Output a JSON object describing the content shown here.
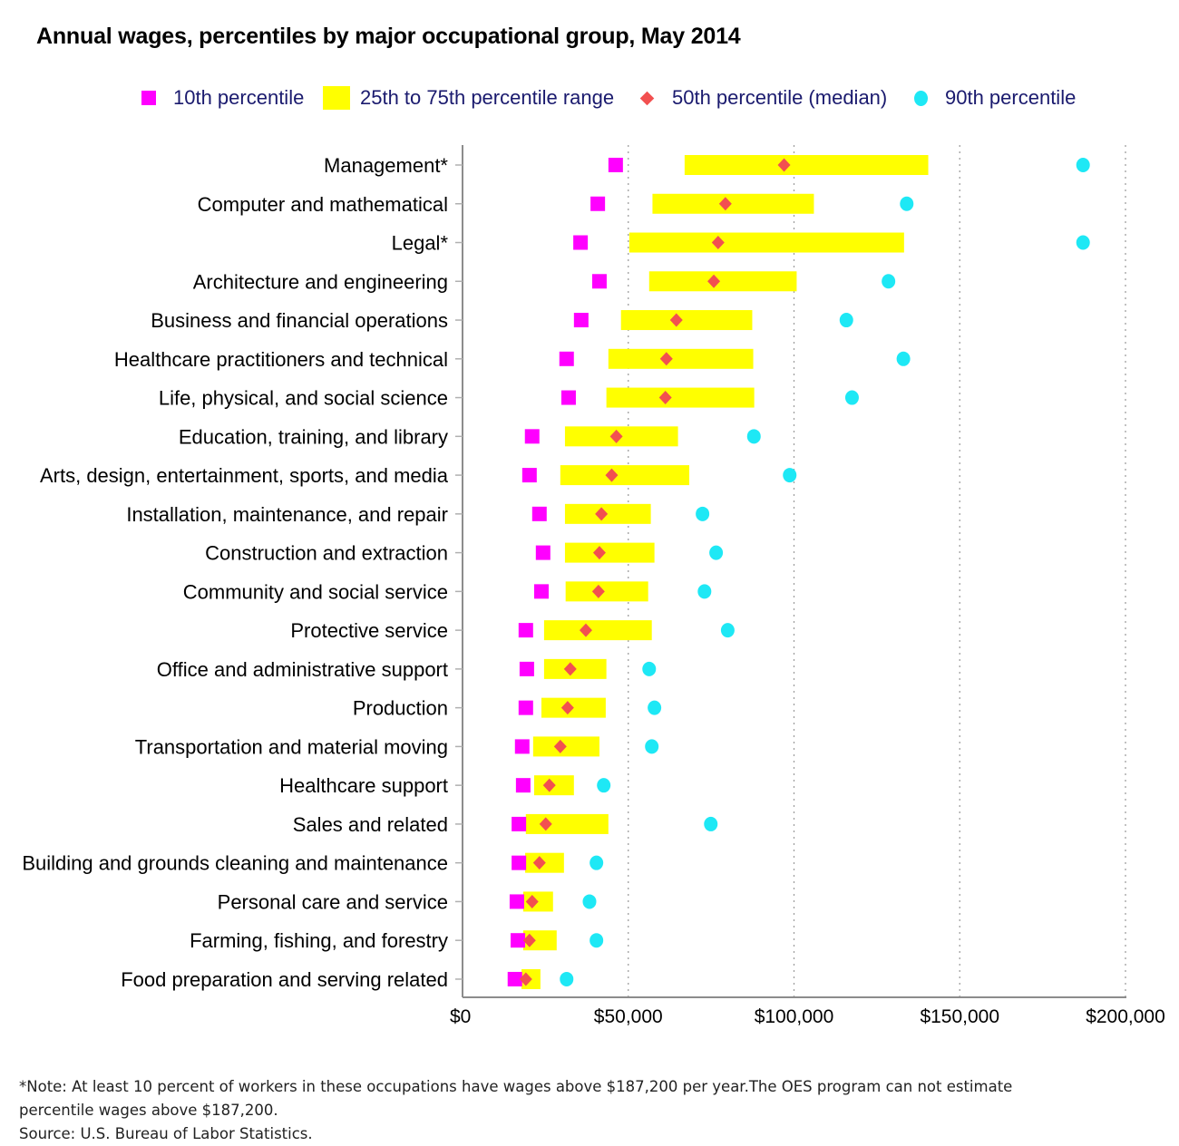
{
  "chart_data": {
    "type": "range-dot",
    "title": "Annual wages, percentiles by major occupational group, May 2014",
    "xlabel": "",
    "ylabel": "",
    "xlim": [
      0,
      200000
    ],
    "x_ticks": [
      0,
      50000,
      100000,
      150000,
      200000
    ],
    "x_tick_labels": [
      "$0",
      "$50,000",
      "$100,000",
      "$150,000",
      "$200,000"
    ],
    "grid": "vertical dotted",
    "legend_position": "top",
    "legend": [
      {
        "key": "p10",
        "label": "10th percentile",
        "marker": "square",
        "color": "#ff00ff"
      },
      {
        "key": "p25_p75",
        "label": "25th to 75th percentile range",
        "marker": "bar",
        "color": "#ffff00"
      },
      {
        "key": "p50",
        "label": "50th percentile (median)",
        "marker": "diamond",
        "color": "#f25050"
      },
      {
        "key": "p90",
        "label": "90th percentile",
        "marker": "circle",
        "color": "#1ee8f5"
      }
    ],
    "categories": [
      "Management*",
      "Computer and mathematical",
      "Legal*",
      "Architecture and engineering",
      "Business and financial operations",
      "Healthcare practitioners and technical",
      "Life, physical, and social science",
      "Education, training, and library",
      "Arts, design, entertainment, sports, and media",
      "Installation, maintenance, and repair",
      "Construction and extraction",
      "Community and social service",
      "Protective service",
      "Office and administrative support",
      "Production",
      "Transportation and material moving",
      "Healthcare support",
      "Sales and related",
      "Building and grounds cleaning and maintenance",
      "Personal care and service",
      "Farming, fishing, and forestry",
      "Food preparation and serving related"
    ],
    "series": [
      {
        "name": "10th percentile",
        "values": [
          46200,
          40800,
          35600,
          41300,
          35800,
          31400,
          32000,
          21000,
          20200,
          23200,
          24300,
          23800,
          19100,
          19400,
          19100,
          18000,
          18300,
          17000,
          17000,
          16400,
          16700,
          15800
        ]
      },
      {
        "name": "25th percentile",
        "values": [
          67000,
          57300,
          50300,
          56300,
          47800,
          44000,
          43400,
          30900,
          29500,
          30900,
          30900,
          31100,
          24600,
          24600,
          23800,
          21300,
          21600,
          19100,
          18900,
          18300,
          18300,
          17800
        ]
      },
      {
        "name": "50th percentile (median)",
        "values": [
          97000,
          79300,
          77100,
          75800,
          64500,
          61500,
          61200,
          46400,
          45000,
          41900,
          41300,
          41000,
          37200,
          32500,
          31700,
          29500,
          26200,
          25100,
          23200,
          21000,
          20200,
          19100
        ]
      },
      {
        "name": "75th percentile",
        "values": [
          140500,
          106000,
          133200,
          100800,
          87400,
          87700,
          88000,
          65000,
          68400,
          56800,
          57900,
          56000,
          57100,
          43400,
          43200,
          41300,
          33600,
          44000,
          30600,
          27300,
          28400,
          23500
        ]
      },
      {
        "name": "90th percentile",
        "values": [
          187200,
          134000,
          187200,
          128500,
          115800,
          133000,
          117500,
          87900,
          98700,
          72400,
          76500,
          73000,
          80000,
          56300,
          57900,
          57100,
          42600,
          74900,
          40400,
          38300,
          40400,
          31400
        ]
      }
    ]
  },
  "notes": {
    "note_line1": "*Note: At least 10 percent of workers in these occupations have wages above $187,200 per year.The OES program can not estimate",
    "note_line2": "percentile wages above $187,200.",
    "source": "Source: U.S. Bureau of Labor Statistics."
  }
}
